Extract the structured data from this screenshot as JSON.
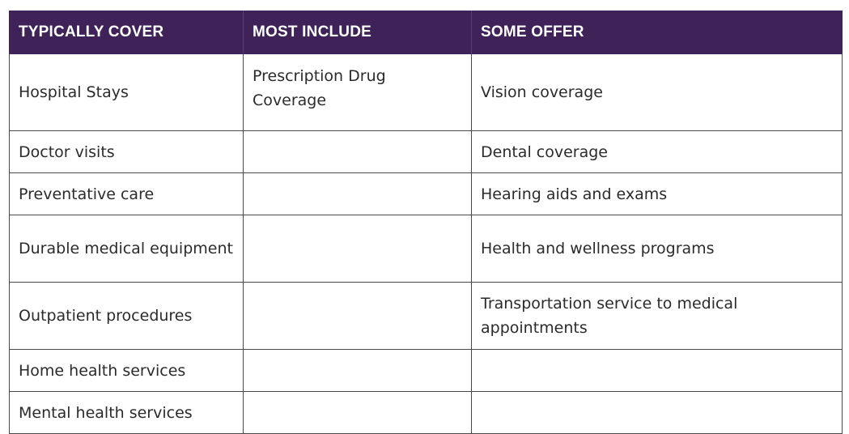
{
  "table": {
    "headers": [
      "TYPICALLY COVER",
      "MOST INCLUDE",
      "SOME OFFER"
    ],
    "rows": [
      [
        "Hospital Stays",
        "Prescription Drug Coverage",
        "Vision coverage"
      ],
      [
        "Doctor visits",
        "",
        "Dental coverage"
      ],
      [
        "Preventative care",
        "",
        "Hearing aids and exams"
      ],
      [
        "Durable medical equipment",
        "",
        "Health and wellness programs"
      ],
      [
        "Outpatient procedures",
        "",
        "Transportation service to medical appointments"
      ],
      [
        "Home health services",
        "",
        ""
      ],
      [
        "Mental health services",
        "",
        ""
      ]
    ]
  },
  "colors": {
    "header_bg": "#3f2358",
    "header_text": "#ffffff",
    "border": "#4a4a4a"
  }
}
